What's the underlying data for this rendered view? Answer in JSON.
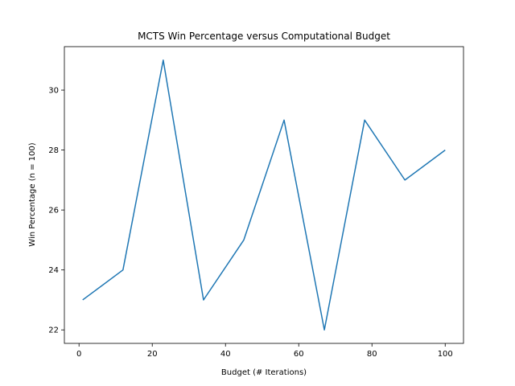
{
  "chart_data": {
    "type": "line",
    "title": "MCTS Win Percentage versus Computational Budget",
    "xlabel": "Budget (# Iterations)",
    "ylabel": "Win Percentage (n = 100)",
    "xlim": [
      -4,
      105
    ],
    "ylim": [
      21.55,
      31.45
    ],
    "xticks": [
      0,
      20,
      40,
      60,
      80,
      100
    ],
    "yticks": [
      22,
      24,
      26,
      28,
      30
    ],
    "grid": false,
    "series": [
      {
        "color": "#1f77b4",
        "x": [
          1,
          12,
          23,
          34,
          45,
          56,
          67,
          78,
          89,
          100
        ],
        "y": [
          23,
          24,
          31,
          23,
          25,
          29,
          22,
          29,
          27,
          28
        ]
      }
    ]
  }
}
